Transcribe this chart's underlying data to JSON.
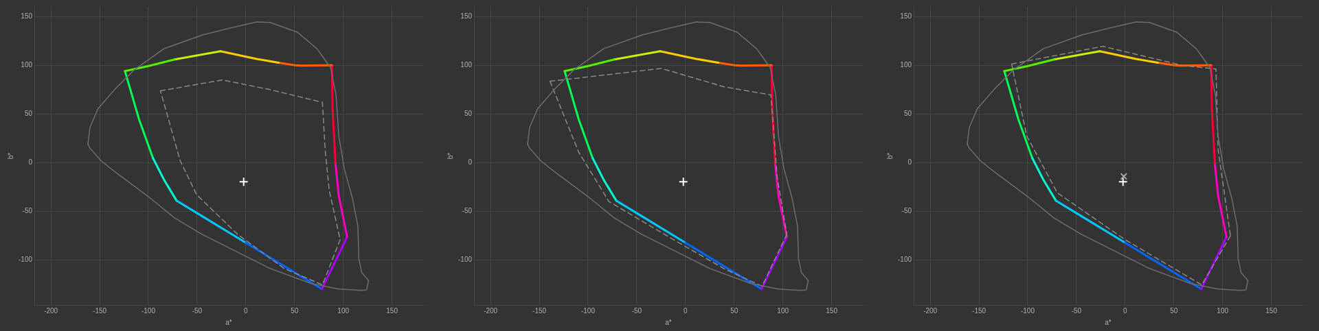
{
  "chart_data": [
    {
      "type": "line",
      "xlabel": "a*",
      "ylabel": "b*",
      "xlim": [
        -217,
        182
      ],
      "ylim": [
        -146,
        160
      ],
      "xticks": [
        -200,
        -150,
        -100,
        -50,
        0,
        50,
        100,
        150
      ],
      "yticks": [
        -100,
        -50,
        0,
        50,
        100,
        150
      ],
      "grid": true,
      "legend": false,
      "series": [
        {
          "color": "#6e6e6e",
          "line_style": "solid",
          "x": [
            -162,
            -160,
            -151.6,
            -134.7,
            -115,
            -84,
            -45,
            -17,
            11,
            25,
            53,
            73,
            87,
            92.6,
            95.4,
            101,
            109.5,
            115,
            116,
            119,
            126
          ],
          "values": [
            19,
            36,
            55.6,
            75,
            95,
            117,
            131,
            138,
            144.5,
            144,
            134,
            117,
            97.6,
            69.6,
            27.5,
            -6,
            -37,
            -65,
            -98.8,
            -112.8,
            -121
          ]
        },
        {
          "color": "#6e6e6e",
          "line_style": "solid",
          "x": [
            126,
            124,
            118,
            95.4,
            67,
            25,
            -3,
            -45,
            -73,
            -101,
            -134.7,
            -148.7,
            -160,
            -162
          ],
          "values": [
            -121,
            -130.5,
            -131,
            -129.6,
            -124,
            -108.6,
            -94.6,
            -73.5,
            -56.7,
            -34,
            -9,
            2.2,
            15,
            19
          ]
        },
        {
          "color": "#8a8a8a",
          "line_style": "dashed",
          "x": [
            -87.6,
            -24,
            25,
            78.6,
            81.4,
            85.6,
            96.8
          ],
          "values": [
            73.8,
            85,
            75,
            62,
            13.5,
            -28.6,
            -79
          ]
        },
        {
          "color": "#8a8a8a",
          "line_style": "dashed",
          "x": [
            96.8,
            78.6,
            39.3,
            -8.4,
            -50.5,
            -67.4,
            -87.6
          ],
          "values": [
            -79,
            -125.4,
            -108.6,
            -73.5,
            -32.8,
            2.2,
            73.8
          ]
        },
        {
          "color": "#55ee00",
          "x": [
            -124,
            -101,
            -73
          ],
          "values": [
            94,
            99,
            106
          ]
        },
        {
          "color": "#ccee00",
          "x": [
            -73,
            -26
          ],
          "values": [
            106,
            114.5
          ]
        },
        {
          "color": "#ffcc00",
          "x": [
            -26,
            11,
            33.7
          ],
          "values": [
            114.5,
            106.6,
            102.7
          ]
        },
        {
          "color": "#ff6000",
          "x": [
            33.7,
            50.5,
            57.5,
            88.4
          ],
          "values": [
            102.7,
            100,
            99.6,
            100
          ]
        },
        {
          "color": "#ff0030",
          "x": [
            88.4,
            89,
            92
          ],
          "values": [
            100,
            55.5,
            -0.5
          ]
        },
        {
          "color": "#ff00c0",
          "x": [
            92,
            95.4,
            104
          ],
          "values": [
            -0.5,
            -34,
            -76
          ]
        },
        {
          "color": "#aa00ff",
          "x": [
            104,
            91,
            78
          ],
          "values": [
            -76,
            -103,
            -129.6
          ]
        },
        {
          "color": "#0066ff",
          "x": [
            78,
            40,
            0
          ],
          "values": [
            -129.6,
            -106.5,
            -82.2
          ]
        },
        {
          "color": "#00c8ff",
          "x": [
            0,
            -40,
            -71
          ],
          "values": [
            -82.2,
            -57.8,
            -39
          ]
        },
        {
          "color": "#00ffcc",
          "x": [
            -71,
            -84,
            -95.4
          ],
          "values": [
            -39,
            -17.4,
            5
          ]
        },
        {
          "color": "#00ff55",
          "x": [
            -95.4,
            -109.5,
            -124
          ],
          "values": [
            5,
            44.3,
            94
          ]
        },
        {
          "type": "scatter",
          "color": "#ffffff",
          "marker": "cross",
          "x": [
            -2.2
          ],
          "values": [
            -19.6
          ]
        }
      ]
    },
    {
      "type": "line",
      "xlabel": "a*",
      "ylabel": "b*",
      "xlim": [
        -217,
        182
      ],
      "ylim": [
        -146,
        160
      ],
      "xticks": [
        -200,
        -150,
        -100,
        -50,
        0,
        50,
        100,
        150
      ],
      "yticks": [
        -100,
        -50,
        0,
        50,
        100,
        150
      ],
      "grid": true,
      "legend": false,
      "series": [
        {
          "color": "#6e6e6e",
          "line_style": "solid",
          "x": [
            -162,
            -160,
            -151.6,
            -134.7,
            -115,
            -84,
            -45,
            -17,
            11,
            25,
            53,
            73,
            87,
            92.6,
            95.4,
            101,
            109.5,
            115,
            116,
            119,
            126
          ],
          "values": [
            19,
            36,
            55.6,
            75,
            95,
            117,
            131,
            138,
            144.5,
            144,
            134,
            117,
            97.6,
            69.6,
            27.5,
            -6,
            -37,
            -65,
            -98.8,
            -112.8,
            -121
          ]
        },
        {
          "color": "#6e6e6e",
          "line_style": "solid",
          "x": [
            126,
            124,
            118,
            95.4,
            67,
            25,
            -3,
            -45,
            -73,
            -101,
            -134.7,
            -148.7,
            -160,
            -162
          ],
          "values": [
            -121,
            -130.5,
            -131,
            -129.6,
            -124,
            -108.6,
            -94.6,
            -73.5,
            -56.7,
            -34,
            -9,
            2.2,
            15,
            19
          ]
        },
        {
          "color": "#8a8a8a",
          "line_style": "dashed",
          "x": [
            -139,
            -24.7,
            39.3,
            87.6,
            89.8,
            94,
            104
          ],
          "values": [
            83.6,
            96.8,
            78,
            69.6,
            41.5,
            -14.6,
            -73.5
          ]
        },
        {
          "color": "#8a8a8a",
          "line_style": "dashed",
          "x": [
            104,
            78.6,
            39.3,
            -16.8,
            -78.6,
            -109.5,
            -139
          ],
          "values": [
            -73.5,
            -126.8,
            -108.6,
            -76.3,
            -39.8,
            10.7,
            83.6
          ]
        },
        {
          "color": "#55ee00",
          "x": [
            -124,
            -101,
            -73
          ],
          "values": [
            94,
            99,
            106
          ]
        },
        {
          "color": "#ccee00",
          "x": [
            -73,
            -26
          ],
          "values": [
            106,
            114.5
          ]
        },
        {
          "color": "#ffcc00",
          "x": [
            -26,
            11,
            33.7
          ],
          "values": [
            114.5,
            106.6,
            102.7
          ]
        },
        {
          "color": "#ff6000",
          "x": [
            33.7,
            50.5,
            57.5,
            88.4
          ],
          "values": [
            102.7,
            100,
            99.6,
            100
          ]
        },
        {
          "color": "#ff0030",
          "x": [
            88.4,
            89,
            92
          ],
          "values": [
            100,
            55.5,
            -0.5
          ]
        },
        {
          "color": "#ff00c0",
          "x": [
            92,
            95.4,
            104
          ],
          "values": [
            -0.5,
            -34,
            -76
          ]
        },
        {
          "color": "#aa00ff",
          "x": [
            104,
            91,
            78
          ],
          "values": [
            -76,
            -103,
            -129.6
          ]
        },
        {
          "color": "#0066ff",
          "x": [
            78,
            40,
            0
          ],
          "values": [
            -129.6,
            -106.5,
            -82.2
          ]
        },
        {
          "color": "#00c8ff",
          "x": [
            0,
            -40,
            -71
          ],
          "values": [
            -82.2,
            -57.8,
            -39
          ]
        },
        {
          "color": "#00ffcc",
          "x": [
            -71,
            -84,
            -95.4
          ],
          "values": [
            -39,
            -17.4,
            5
          ]
        },
        {
          "color": "#00ff55",
          "x": [
            -95.4,
            -109.5,
            -124
          ],
          "values": [
            5,
            44.3,
            94
          ]
        },
        {
          "type": "scatter",
          "color": "#ffffff",
          "marker": "cross",
          "x": [
            -2.2
          ],
          "values": [
            -19.6
          ]
        }
      ]
    },
    {
      "type": "line",
      "xlabel": "a*",
      "ylabel": "b*",
      "xlim": [
        -217,
        182
      ],
      "ylim": [
        -146,
        160
      ],
      "xticks": [
        -200,
        -150,
        -100,
        -50,
        0,
        50,
        100,
        150
      ],
      "yticks": [
        -100,
        -50,
        0,
        50,
        100,
        150
      ],
      "grid": true,
      "legend": false,
      "series": [
        {
          "color": "#6e6e6e",
          "line_style": "solid",
          "x": [
            -162,
            -160,
            -151.6,
            -134.7,
            -115,
            -84,
            -45,
            -17,
            11,
            25,
            53,
            73,
            87,
            92.6,
            95.4,
            101,
            109.5,
            115,
            116,
            119,
            126
          ],
          "values": [
            19,
            36,
            55.6,
            75,
            95,
            117,
            131,
            138,
            144.5,
            144,
            134,
            117,
            97.6,
            69.6,
            27.5,
            -6,
            -37,
            -65,
            -98.8,
            -112.8,
            -121
          ]
        },
        {
          "color": "#6e6e6e",
          "line_style": "solid",
          "x": [
            126,
            124,
            118,
            95.4,
            67,
            25,
            -3,
            -45,
            -73,
            -101,
            -134.7,
            -148.7,
            -160,
            -162
          ],
          "values": [
            -121,
            -130.5,
            -131,
            -129.6,
            -124,
            -108.6,
            -94.6,
            -73.5,
            -56.7,
            -34,
            -9,
            2.2,
            15,
            19
          ]
        },
        {
          "color": "#8a8a8a",
          "line_style": "dashed",
          "x": [
            -116.5,
            -23,
            59,
            93.2,
            95.4,
            108
          ],
          "values": [
            101.3,
            119.5,
            99.9,
            96.2,
            13.5,
            -75
          ]
        },
        {
          "color": "#8a8a8a",
          "line_style": "dashed",
          "x": [
            108,
            78.6,
            0,
            -69.6,
            -101,
            -116.5
          ],
          "values": [
            -75,
            -125.4,
            -79,
            -30.9,
            27.5,
            101.3
          ]
        },
        {
          "color": "#55ee00",
          "x": [
            -124,
            -101,
            -73
          ],
          "values": [
            94,
            99,
            106
          ]
        },
        {
          "color": "#ccee00",
          "x": [
            -73,
            -26
          ],
          "values": [
            106,
            114.5
          ]
        },
        {
          "color": "#ffcc00",
          "x": [
            -26,
            11,
            33.7
          ],
          "values": [
            114.5,
            106.6,
            102.7
          ]
        },
        {
          "color": "#ff6000",
          "x": [
            33.7,
            50.5,
            57.5,
            88.4
          ],
          "values": [
            102.7,
            100,
            99.6,
            100
          ]
        },
        {
          "color": "#ff0030",
          "x": [
            88.4,
            89,
            92
          ],
          "values": [
            100,
            55.5,
            -0.5
          ]
        },
        {
          "color": "#ff00c0",
          "x": [
            92,
            95.4,
            104
          ],
          "values": [
            -0.5,
            -34,
            -76
          ]
        },
        {
          "color": "#aa00ff",
          "x": [
            104,
            91,
            78
          ],
          "values": [
            -76,
            -103,
            -129.6
          ]
        },
        {
          "color": "#0066ff",
          "x": [
            78,
            40,
            0
          ],
          "values": [
            -129.6,
            -106.5,
            -82.2
          ]
        },
        {
          "color": "#00c8ff",
          "x": [
            0,
            -40,
            -71
          ],
          "values": [
            -82.2,
            -57.8,
            -39
          ]
        },
        {
          "color": "#00ffcc",
          "x": [
            -71,
            -84,
            -95.4
          ],
          "values": [
            -39,
            -17.4,
            5
          ]
        },
        {
          "color": "#00ff55",
          "x": [
            -95.4,
            -109.5,
            -124
          ],
          "values": [
            5,
            44.3,
            94
          ]
        },
        {
          "type": "scatter",
          "color": "#aaaaaa",
          "marker": "x",
          "x": [
            -1.4
          ],
          "values": [
            -14
          ]
        },
        {
          "type": "scatter",
          "color": "#ffffff",
          "marker": "cross",
          "x": [
            -2.2
          ],
          "values": [
            -19.6
          ]
        }
      ]
    }
  ]
}
